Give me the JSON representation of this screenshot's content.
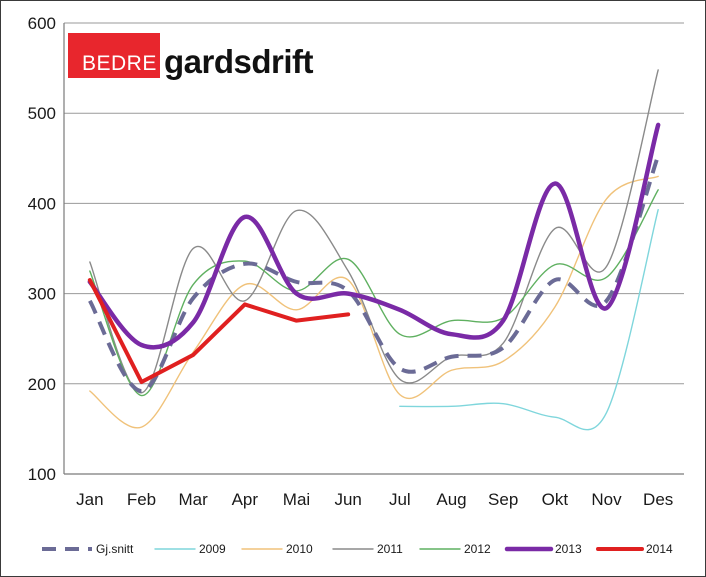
{
  "logo": {
    "red_part": "BEDRE",
    "word_part": "gardsdrift"
  },
  "colors": {
    "Gj.snitt": "#6b6b96",
    "2009": "#7fd6dc",
    "2010": "#f0c27a",
    "2011": "#8a8a8a",
    "2012": "#5fb060",
    "2013": "#7a2aa6",
    "2014": "#e02020"
  },
  "chart_data": {
    "type": "line",
    "title": "",
    "xlabel": "",
    "ylabel": "",
    "categories": [
      "Jan",
      "Feb",
      "Mar",
      "Apr",
      "Mai",
      "Jun",
      "Jul",
      "Aug",
      "Sep",
      "Okt",
      "Nov",
      "Des"
    ],
    "y_ticks": [
      "100",
      "200",
      "300",
      "400",
      "500",
      "600"
    ],
    "ylim": [
      100,
      600
    ],
    "grid": "horizontal",
    "legend_position": "bottom",
    "series": [
      {
        "name": "Gj.snitt",
        "style": "dashed",
        "values": [
          292,
          192,
          295,
          333,
          313,
          303,
          217,
          230,
          240,
          315,
          292,
          453
        ]
      },
      {
        "name": "2009",
        "style": "solid",
        "values": [
          null,
          null,
          null,
          null,
          null,
          null,
          175,
          175,
          178,
          163,
          168,
          393
        ]
      },
      {
        "name": "2010",
        "style": "solid",
        "values": [
          192,
          152,
          235,
          310,
          282,
          315,
          188,
          215,
          225,
          285,
          405,
          430
        ]
      },
      {
        "name": "2011",
        "style": "solid",
        "values": [
          335,
          190,
          350,
          292,
          392,
          325,
          205,
          230,
          245,
          372,
          330,
          548
        ]
      },
      {
        "name": "2012",
        "style": "solid",
        "values": [
          325,
          187,
          310,
          336,
          303,
          338,
          255,
          270,
          273,
          332,
          318,
          415
        ]
      },
      {
        "name": "2013",
        "style": "thick",
        "values": [
          313,
          243,
          268,
          385,
          300,
          300,
          282,
          255,
          270,
          422,
          284,
          487
        ]
      },
      {
        "name": "2014",
        "style": "red",
        "values": [
          315,
          202,
          232,
          288,
          270,
          277,
          null,
          null,
          null,
          null,
          null,
          null
        ]
      }
    ]
  }
}
